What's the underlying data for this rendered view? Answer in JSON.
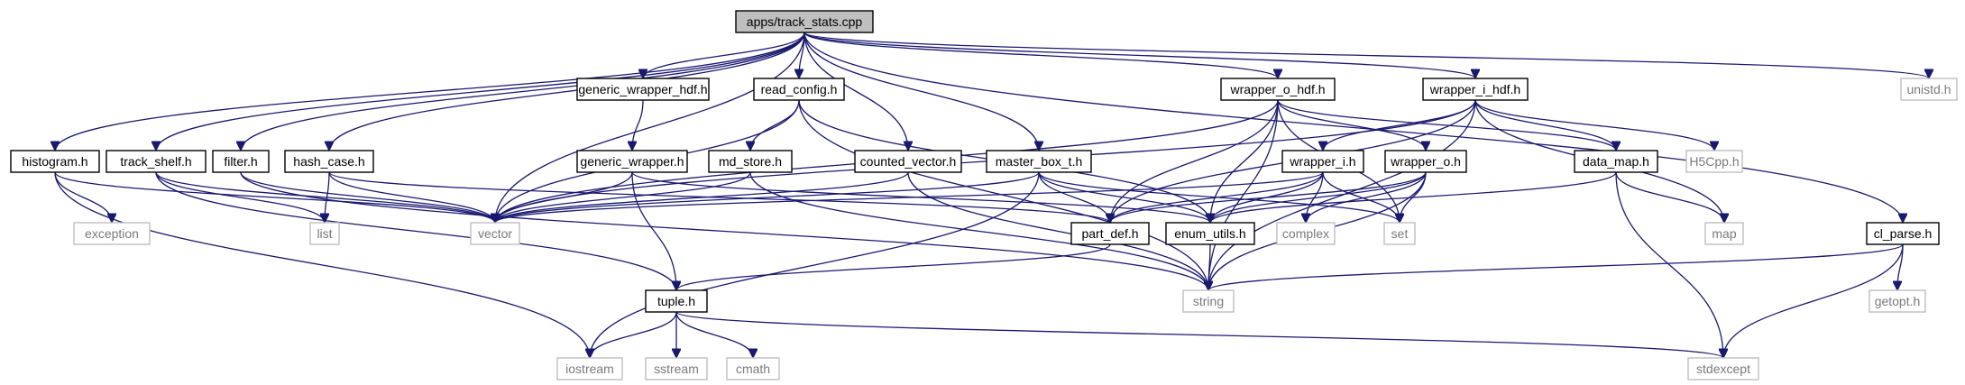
{
  "diagram": {
    "nodes": [
      {
        "id": "root",
        "label": "apps/track_stats.cpp",
        "kind": "root"
      },
      {
        "id": "histogram",
        "label": "histogram.h",
        "kind": "local"
      },
      {
        "id": "track_shelf",
        "label": "track_shelf.h",
        "kind": "local"
      },
      {
        "id": "filter",
        "label": "filter.h",
        "kind": "local"
      },
      {
        "id": "hash_case",
        "label": "hash_case.h",
        "kind": "local"
      },
      {
        "id": "gen_wrapper_hdf",
        "label": "generic_wrapper_hdf.h",
        "kind": "local"
      },
      {
        "id": "gen_wrapper",
        "label": "generic_wrapper.h",
        "kind": "local"
      },
      {
        "id": "read_config",
        "label": "read_config.h",
        "kind": "local"
      },
      {
        "id": "md_store",
        "label": "md_store.h",
        "kind": "local"
      },
      {
        "id": "counted_vector",
        "label": "counted_vector.h",
        "kind": "local"
      },
      {
        "id": "master_box",
        "label": "master_box_t.h",
        "kind": "local"
      },
      {
        "id": "wrapper_o_hdf",
        "label": "wrapper_o_hdf.h",
        "kind": "local"
      },
      {
        "id": "wrapper_i_hdf",
        "label": "wrapper_i_hdf.h",
        "kind": "local"
      },
      {
        "id": "wrapper_i",
        "label": "wrapper_i.h",
        "kind": "local"
      },
      {
        "id": "wrapper_o",
        "label": "wrapper_o.h",
        "kind": "local"
      },
      {
        "id": "data_map",
        "label": "data_map.h",
        "kind": "local"
      },
      {
        "id": "part_def",
        "label": "part_def.h",
        "kind": "local"
      },
      {
        "id": "enum_utils",
        "label": "enum_utils.h",
        "kind": "local"
      },
      {
        "id": "tuple",
        "label": "tuple.h",
        "kind": "local"
      },
      {
        "id": "cl_parse",
        "label": "cl_parse.h",
        "kind": "local"
      },
      {
        "id": "unistd",
        "label": "unistd.h",
        "kind": "ext"
      },
      {
        "id": "h5cpp",
        "label": "H5Cpp.h",
        "kind": "ext"
      },
      {
        "id": "exception",
        "label": "exception",
        "kind": "ext"
      },
      {
        "id": "list",
        "label": "list",
        "kind": "ext"
      },
      {
        "id": "vector",
        "label": "vector",
        "kind": "ext"
      },
      {
        "id": "complex",
        "label": "complex",
        "kind": "ext"
      },
      {
        "id": "set",
        "label": "set",
        "kind": "ext"
      },
      {
        "id": "map",
        "label": "map",
        "kind": "ext"
      },
      {
        "id": "string",
        "label": "string",
        "kind": "ext"
      },
      {
        "id": "getopt",
        "label": "getopt.h",
        "kind": "ext"
      },
      {
        "id": "iostream",
        "label": "iostream",
        "kind": "ext"
      },
      {
        "id": "sstream",
        "label": "sstream",
        "kind": "ext"
      },
      {
        "id": "cmath",
        "label": "cmath",
        "kind": "ext"
      },
      {
        "id": "stdexcept",
        "label": "stdexcept",
        "kind": "ext"
      }
    ],
    "edges": [
      [
        "root",
        "histogram"
      ],
      [
        "root",
        "track_shelf"
      ],
      [
        "root",
        "filter"
      ],
      [
        "root",
        "hash_case"
      ],
      [
        "root",
        "gen_wrapper_hdf"
      ],
      [
        "root",
        "read_config"
      ],
      [
        "root",
        "counted_vector"
      ],
      [
        "root",
        "master_box"
      ],
      [
        "root",
        "wrapper_o_hdf"
      ],
      [
        "root",
        "wrapper_i_hdf"
      ],
      [
        "root",
        "unistd"
      ],
      [
        "root",
        "cl_parse"
      ],
      [
        "root",
        "vector"
      ],
      [
        "histogram",
        "exception"
      ],
      [
        "histogram",
        "vector"
      ],
      [
        "histogram",
        "iostream"
      ],
      [
        "track_shelf",
        "list"
      ],
      [
        "track_shelf",
        "vector"
      ],
      [
        "track_shelf",
        "tuple"
      ],
      [
        "filter",
        "vector"
      ],
      [
        "filter",
        "string"
      ],
      [
        "hash_case",
        "list"
      ],
      [
        "hash_case",
        "vector"
      ],
      [
        "hash_case",
        "part_def"
      ],
      [
        "gen_wrapper_hdf",
        "gen_wrapper"
      ],
      [
        "gen_wrapper",
        "vector"
      ],
      [
        "gen_wrapper",
        "tuple"
      ],
      [
        "gen_wrapper",
        "enum_utils"
      ],
      [
        "read_config",
        "md_store"
      ],
      [
        "read_config",
        "vector"
      ],
      [
        "read_config",
        "string"
      ],
      [
        "read_config",
        "enum_utils"
      ],
      [
        "md_store",
        "vector"
      ],
      [
        "md_store",
        "string"
      ],
      [
        "counted_vector",
        "vector"
      ],
      [
        "counted_vector",
        "string"
      ],
      [
        "master_box",
        "vector"
      ],
      [
        "master_box",
        "part_def"
      ],
      [
        "master_box",
        "enum_utils"
      ],
      [
        "master_box",
        "set"
      ],
      [
        "master_box",
        "iostream"
      ],
      [
        "wrapper_o_hdf",
        "wrapper_o"
      ],
      [
        "wrapper_o_hdf",
        "part_def"
      ],
      [
        "wrapper_o_hdf",
        "enum_utils"
      ],
      [
        "wrapper_o_hdf",
        "data_map"
      ],
      [
        "wrapper_o_hdf",
        "vector"
      ],
      [
        "wrapper_o_hdf",
        "set"
      ],
      [
        "wrapper_o_hdf",
        "string"
      ],
      [
        "wrapper_i_hdf",
        "wrapper_i"
      ],
      [
        "wrapper_i_hdf",
        "data_map"
      ],
      [
        "wrapper_i_hdf",
        "h5cpp"
      ],
      [
        "wrapper_i_hdf",
        "map"
      ],
      [
        "wrapper_i_hdf",
        "part_def"
      ],
      [
        "wrapper_i_hdf",
        "vector"
      ],
      [
        "wrapper_i_hdf",
        "string"
      ],
      [
        "wrapper_i",
        "part_def"
      ],
      [
        "wrapper_i",
        "enum_utils"
      ],
      [
        "wrapper_i",
        "complex"
      ],
      [
        "wrapper_i",
        "set"
      ],
      [
        "wrapper_i",
        "vector"
      ],
      [
        "wrapper_o",
        "part_def"
      ],
      [
        "wrapper_o",
        "enum_utils"
      ],
      [
        "wrapper_o",
        "complex"
      ],
      [
        "wrapper_o",
        "set"
      ],
      [
        "wrapper_o",
        "string"
      ],
      [
        "data_map",
        "map"
      ],
      [
        "data_map",
        "stdexcept"
      ],
      [
        "data_map",
        "enum_utils"
      ],
      [
        "part_def",
        "tuple"
      ],
      [
        "enum_utils",
        "string"
      ],
      [
        "tuple",
        "iostream"
      ],
      [
        "tuple",
        "sstream"
      ],
      [
        "tuple",
        "cmath"
      ],
      [
        "tuple",
        "stdexcept"
      ],
      [
        "cl_parse",
        "getopt"
      ],
      [
        "cl_parse",
        "string"
      ],
      [
        "cl_parse",
        "stdexcept"
      ]
    ]
  }
}
